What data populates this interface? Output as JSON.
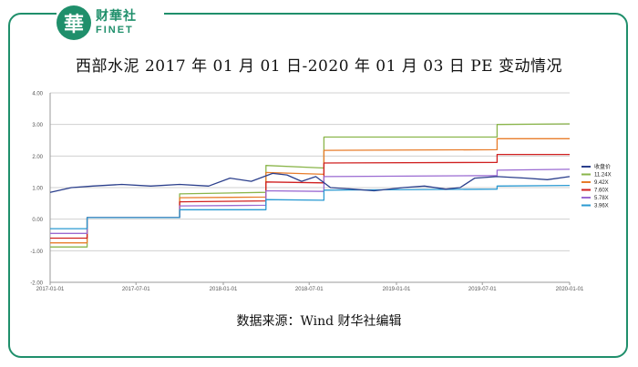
{
  "logo": {
    "mark": "華",
    "name_cn": "财華社",
    "name_en": "FINET"
  },
  "title": "西部水泥 2017 年 01 月 01 日-2020 年 01 月 03 日 PE 变动情况",
  "source": "数据来源：Wind    财华社编辑",
  "colors": {
    "frame": "#1f8f6b",
    "grid": "#d0d0d0"
  },
  "chart_data": {
    "type": "line",
    "x_range": [
      "2017-01-01",
      "2020-01-01"
    ],
    "ylim": [
      -2.0,
      4.0
    ],
    "y_ticks": [
      "4.00",
      "3.00",
      "2.00",
      "1.00",
      "0.00",
      "-1.00",
      "-2.00"
    ],
    "x_ticks": [
      "2017-01-01",
      "2017-07-01",
      "2018-01-01",
      "2018-07-01",
      "2019-01-01",
      "2019-07-01",
      "2020-01-01"
    ],
    "grid": true,
    "legend_position": "right",
    "series": [
      {
        "name": "收盘价",
        "color": "#2b3f8c",
        "points": [
          [
            "2017-01-01",
            0.85
          ],
          [
            "2017-02-15",
            1.0
          ],
          [
            "2017-04-01",
            1.05
          ],
          [
            "2017-06-01",
            1.1
          ],
          [
            "2017-08-01",
            1.05
          ],
          [
            "2017-10-01",
            1.1
          ],
          [
            "2017-12-01",
            1.05
          ],
          [
            "2018-01-15",
            1.3
          ],
          [
            "2018-03-01",
            1.2
          ],
          [
            "2018-04-15",
            1.45
          ],
          [
            "2018-05-15",
            1.4
          ],
          [
            "2018-06-15",
            1.2
          ],
          [
            "2018-07-15",
            1.35
          ],
          [
            "2018-08-15",
            1.0
          ],
          [
            "2018-10-01",
            0.95
          ],
          [
            "2018-11-15",
            0.9
          ],
          [
            "2019-01-15",
            1.0
          ],
          [
            "2019-03-01",
            1.05
          ],
          [
            "2019-04-15",
            0.95
          ],
          [
            "2019-05-15",
            1.0
          ],
          [
            "2019-06-15",
            1.3
          ],
          [
            "2019-08-01",
            1.35
          ],
          [
            "2019-10-01",
            1.3
          ],
          [
            "2019-11-15",
            1.25
          ],
          [
            "2020-01-01",
            1.35
          ]
        ]
      },
      {
        "name": "11.24X",
        "color": "#8ab54a",
        "points": [
          [
            "2017-01-01",
            -0.88
          ],
          [
            "2017-03-20",
            -0.88
          ],
          [
            "2017-03-20",
            0.05
          ],
          [
            "2017-10-01",
            0.05
          ],
          [
            "2017-10-01",
            0.8
          ],
          [
            "2018-04-01",
            0.85
          ],
          [
            "2018-04-01",
            1.7
          ],
          [
            "2018-08-01",
            1.62
          ],
          [
            "2018-08-01",
            2.6
          ],
          [
            "2019-08-01",
            2.6
          ],
          [
            "2019-08-01",
            3.0
          ],
          [
            "2020-01-01",
            3.02
          ]
        ]
      },
      {
        "name": "9.42X",
        "color": "#e87c2a",
        "points": [
          [
            "2017-01-01",
            -0.75
          ],
          [
            "2017-03-20",
            -0.75
          ],
          [
            "2017-03-20",
            0.05
          ],
          [
            "2017-10-01",
            0.05
          ],
          [
            "2017-10-01",
            0.68
          ],
          [
            "2018-04-01",
            0.7
          ],
          [
            "2018-04-01",
            1.48
          ],
          [
            "2018-08-01",
            1.42
          ],
          [
            "2018-08-01",
            2.18
          ],
          [
            "2019-08-01",
            2.2
          ],
          [
            "2019-08-01",
            2.55
          ],
          [
            "2020-01-01",
            2.55
          ]
        ]
      },
      {
        "name": "7.60X",
        "color": "#d02020",
        "points": [
          [
            "2017-01-01",
            -0.6
          ],
          [
            "2017-03-20",
            -0.6
          ],
          [
            "2017-03-20",
            0.05
          ],
          [
            "2017-10-01",
            0.05
          ],
          [
            "2017-10-01",
            0.55
          ],
          [
            "2018-04-01",
            0.58
          ],
          [
            "2018-04-01",
            1.18
          ],
          [
            "2018-08-01",
            1.15
          ],
          [
            "2018-08-01",
            1.78
          ],
          [
            "2019-08-01",
            1.8
          ],
          [
            "2019-08-01",
            2.05
          ],
          [
            "2020-01-01",
            2.05
          ]
        ]
      },
      {
        "name": "5.78X",
        "color": "#9a6ad2",
        "points": [
          [
            "2017-01-01",
            -0.45
          ],
          [
            "2017-03-20",
            -0.45
          ],
          [
            "2017-03-20",
            0.05
          ],
          [
            "2017-10-01",
            0.05
          ],
          [
            "2017-10-01",
            0.42
          ],
          [
            "2018-04-01",
            0.44
          ],
          [
            "2018-04-01",
            0.9
          ],
          [
            "2018-08-01",
            0.88
          ],
          [
            "2018-08-01",
            1.35
          ],
          [
            "2019-08-01",
            1.38
          ],
          [
            "2019-08-01",
            1.55
          ],
          [
            "2020-01-01",
            1.58
          ]
        ]
      },
      {
        "name": "3.96X",
        "color": "#2a9ad2",
        "points": [
          [
            "2017-01-01",
            -0.3
          ],
          [
            "2017-03-20",
            -0.3
          ],
          [
            "2017-03-20",
            0.05
          ],
          [
            "2017-10-01",
            0.05
          ],
          [
            "2017-10-01",
            0.3
          ],
          [
            "2018-04-01",
            0.3
          ],
          [
            "2018-04-01",
            0.62
          ],
          [
            "2018-08-01",
            0.6
          ],
          [
            "2018-08-01",
            0.92
          ],
          [
            "2019-08-01",
            0.95
          ],
          [
            "2019-08-01",
            1.05
          ],
          [
            "2020-01-01",
            1.07
          ]
        ]
      }
    ]
  }
}
